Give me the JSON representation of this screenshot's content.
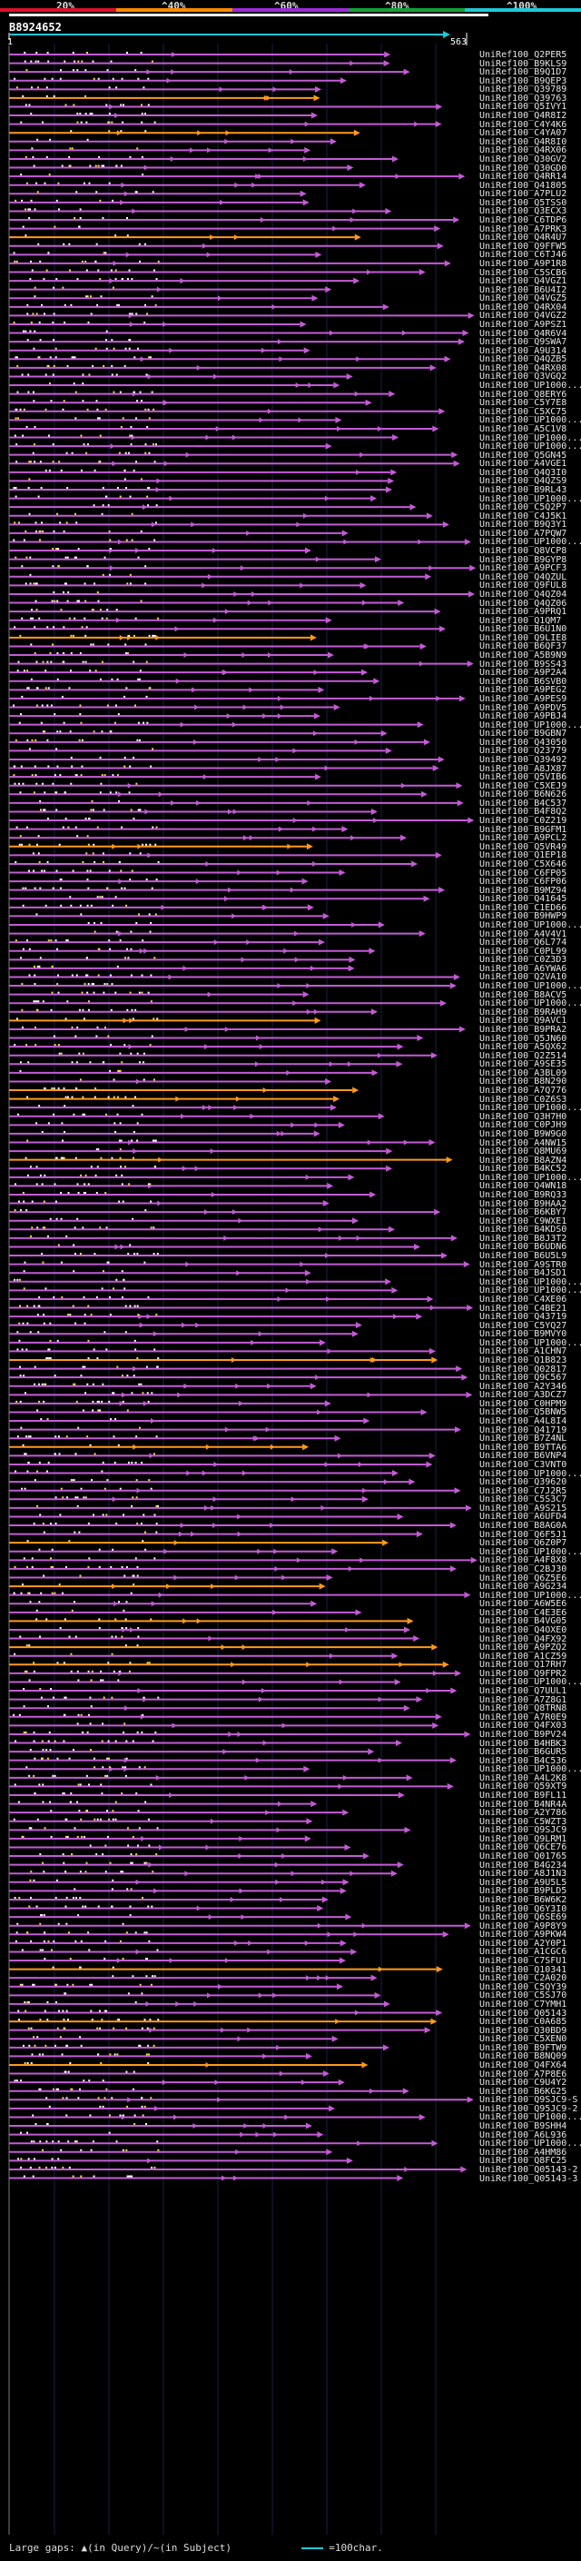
{
  "query_id": "B8924652",
  "scale": {
    "labels": [
      "20%",
      "^40%",
      "^60%",
      "^80%",
      "^100%"
    ],
    "colors": [
      "#e0102a",
      "#ff8a00",
      "#9b2bd8",
      "#11a23a",
      "#20c8d6"
    ]
  },
  "ruler": {
    "start": "1",
    "end": "563"
  },
  "hits": [
    "UniRef100_Q2PER5",
    "UniRef100_B9KLS9",
    "UniRef100_B9Q1D7",
    "UniRef100_B9QEP3",
    "UniRef100_Q39789",
    "UniRef100_Q39763",
    "UniRef100_Q5IVY1",
    "UniRef100_Q4R8I2",
    "UniRef100_C4Y4K6",
    "UniRef100_C4YA07",
    "UniRef100_Q4R8I0",
    "UniRef100_Q4RX06",
    "UniRef100_Q30GV2",
    "UniRef100_Q30GD0",
    "UniRef100_Q4RR14",
    "UniRef100_Q41805",
    "UniRef100_A7PLU2",
    "UniRef100_Q5TSS0",
    "UniRef100_Q3ECX3",
    "UniRef100_C6TDP6",
    "UniRef100_A7PRK3",
    "UniRef100_Q4R4U7",
    "UniRef100_Q9FFW5",
    "UniRef100_C6TJ46",
    "UniRef100_A9P1R8",
    "UniRef100_C5SCB6",
    "UniRef100_Q4VGZ1",
    "UniRef100_B6U4I2",
    "UniRef100_Q4VGZ5",
    "UniRef100_Q4RX04",
    "UniRef100_Q4VGZ2",
    "UniRef100_A9PSZ1",
    "UniRef100_Q4R6V4",
    "UniRef100_Q9SWA7",
    "UniRef100_A9U314",
    "UniRef100_Q4QZB5",
    "UniRef100_Q4RX08",
    "UniRef100_Q3VGQ2",
    "UniRef100_UP1000...",
    "UniRef100_Q8ERY6",
    "UniRef100_C5Y7E8",
    "UniRef100_C5XC75",
    "UniRef100_UP1000...",
    "UniRef100_A5C1V8",
    "UniRef100_UP1000...",
    "UniRef100_UP1000...",
    "UniRef100_Q5GN45",
    "UniRef100_A4VGE1",
    "UniRef100_Q4Q3I0",
    "UniRef100_Q4QZS9",
    "UniRef100_B9RL43",
    "UniRef100_UP1000...",
    "UniRef100_C5Q2P7",
    "UniRef100_C4J5K1",
    "UniRef100_B9Q3Y1",
    "UniRef100_A7PQW7",
    "UniRef100_UP1000...",
    "UniRef100_Q8VCP8",
    "UniRef100_B9GYP8",
    "UniRef100_A9PCF3",
    "UniRef100_Q4QZUL",
    "UniRef100_Q9FUL8",
    "UniRef100_Q4QZ04",
    "UniRef100_Q4QZ06",
    "UniRef100_A9PRQ1",
    "UniRef100_Q1QM7",
    "UniRef100_B6U1N0",
    "UniRef100_Q9LIE8",
    "UniRef100_B6QF37",
    "UniRef100_A5B9N9",
    "UniRef100_B9SS43",
    "UniRef100_A9P2A4",
    "UniRef100_B6SVB0",
    "UniRef100_A9PEG2",
    "UniRef100_A9PES9",
    "UniRef100_A9PDV5",
    "UniRef100_A9PBJ4",
    "UniRef100_UP1000...",
    "UniRef100_B9GBN7",
    "UniRef100_Q43050",
    "UniRef100_Q23779",
    "UniRef100_Q39492",
    "UniRef100_A8JX87",
    "UniRef100_Q5VIB6",
    "UniRef100_C5XEJ9",
    "UniRef100_B6N626",
    "UniRef100_B4C537",
    "UniRef100_B4F8Q2",
    "UniRef100_C0Z219",
    "UniRef100_B9GFM1",
    "UniRef100_A9PCL2",
    "UniRef100_Q5VR49",
    "UniRef100_Q1EP18",
    "UniRef100_C5X646",
    "UniRef100_C6FP05",
    "UniRef100_C6FP06",
    "UniRef100_B9MZ94",
    "UniRef100_Q41645",
    "UniRef100_C1ED66",
    "UniRef100_B9HWP9",
    "UniRef100_UP1000...",
    "UniRef100_A4V4V1",
    "UniRef100_Q6L774",
    "UniRef100_C0PL99",
    "UniRef100_C0Z3D3",
    "UniRef100_A6YWA6",
    "UniRef100_Q2VA10",
    "UniRef100_UP1000...",
    "UniRef100_B8ACV5",
    "UniRef100_UP1000...",
    "UniRef100_B9RAH9",
    "UniRef100_Q9AVC1",
    "UniRef100_B9PRA2",
    "UniRef100_Q5JN60",
    "UniRef100_A5QX62",
    "UniRef100_Q2Z514",
    "UniRef100_A9SE35",
    "UniRef100_A3BL09",
    "UniRef100_B8N290",
    "UniRef100_A7Q776",
    "UniRef100_C0Z6S3",
    "UniRef100_UP1000...",
    "UniRef100_Q3H7H0",
    "UniRef100_C0PJH9",
    "UniRef100_B9W9G0",
    "UniRef100_A4NW15",
    "UniRef100_Q8MU69",
    "UniRef100_B8AZN4",
    "UniRef100_B4KC52",
    "UniRef100_UP1000...",
    "UniRef100_Q4WN18",
    "UniRef100_B9RQ33",
    "UniRef100_B9HAA2",
    "UniRef100_B6KBY7",
    "UniRef100_C9WXE1",
    "UniRef100_B4KDS0",
    "UniRef100_B8J3T2",
    "UniRef100_B6UDN6",
    "UniRef100_B6U5L9",
    "UniRef100_A9STR0",
    "UniRef100_B4JSD1",
    "UniRef100_UP1000...",
    "UniRef100_UP1000...",
    "UniRef100_C4XE06",
    "UniRef100_C4BE21",
    "UniRef100_Q43719",
    "UniRef100_C5YQ27",
    "UniRef100_B9MVY0",
    "UniRef100_UP1000...",
    "UniRef100_A1CHN7",
    "UniRef100_Q1B823",
    "UniRef100_Q02817",
    "UniRef100_Q9C567",
    "UniRef100_A2Y346",
    "UniRef100_A3DCZ7",
    "UniRef100_C0HPM9",
    "UniRef100_Q5BNW5",
    "UniRef100_A4L8I4",
    "UniRef100_Q41719",
    "UniRef100_B7Z4NL",
    "UniRef100_B9TTA6",
    "UniRef100_B6VNP4",
    "UniRef100_C3VNT0",
    "UniRef100_UP1000...",
    "UniRef100_Q39620",
    "UniRef100_C7J2R5",
    "UniRef100_C5S3C7",
    "UniRef100_A9S215",
    "UniRef100_A6UFD4",
    "UniRef100_B8AG0A",
    "UniRef100_Q6F5J1",
    "UniRef100_Q6Z0P7",
    "UniRef100_UP1000...",
    "UniRef100_A4F8X8",
    "UniRef100_C2BJ30",
    "UniRef100_Q6Z5E6",
    "UniRef100_A9G234",
    "UniRef100_UP1000...",
    "UniRef100_A6W5E6",
    "UniRef100_C4E3E6",
    "UniRef100_B4VG05",
    "UniRef100_Q4OXE0",
    "UniRef100_Q4FX92",
    "UniRef100_A9PZQ2",
    "UniRef100_A1CZ59",
    "UniRef100_Q17RH7",
    "UniRef100_Q9FPR2",
    "UniRef100_UP1000...",
    "UniRef100_Q7UUL1",
    "UniRef100_A7Z8G1",
    "UniRef100_Q8TRN8",
    "UniRef100_A7R0E9",
    "UniRef100_Q4FX03",
    "UniRef100_B9PV24",
    "UniRef100_B4HBK3",
    "UniRef100_B6GUR5",
    "UniRef100_B4C536",
    "UniRef100_UP1000...",
    "UniRef100_A4L2K8",
    "UniRef100_Q59XT9",
    "UniRef100_B9FL11",
    "UniRef100_B4NR4A",
    "UniRef100_A2Y786",
    "UniRef100_C5WZT3",
    "UniRef100_Q9SJC9",
    "UniRef100_Q9LRM1",
    "UniRef100_Q6CE76",
    "UniRef100_Q01765",
    "UniRef100_B4G234",
    "UniRef100_A8J1N3",
    "UniRef100_A9U5L5",
    "UniRef100_B9PLD5",
    "UniRef100_B6W6K2",
    "UniRef100_Q6Y3I0",
    "UniRef100_Q6SE69",
    "UniRef100_A9P8Y9",
    "UniRef100_A9PKW4",
    "UniRef100_A2Y0P1",
    "UniRef100_A1CGC6",
    "UniRef100_C7SFU1",
    "UniRef100_Q10341",
    "UniRef100_C2A020",
    "UniRef100_C5QY39",
    "UniRef100_C5SJ70",
    "UniRef100_C7YMH1",
    "UniRef100_Q05143",
    "UniRef100_C0A685",
    "UniRef100_Q30BD9",
    "UniRef100_C5XEN0",
    "UniRef100_B9FTW9",
    "UniRef100_B8NQ09",
    "UniRef100_Q4FX64",
    "UniRef100_A7P8E6",
    "UniRef100_C9U4Y2",
    "UniRef100_B6KG25",
    "UniRef100_Q9SJC9-S",
    "UniRef100_Q95JC9-2",
    "UniRef100_UP1000...",
    "UniRef100_B9SHH4",
    "UniRef100_A6L936",
    "UniRef100_UP1000...",
    "UniRef100_A4HM86",
    "UniRef100_Q8FC25",
    "UniRef100_Q05143-2",
    "UniRef100_Q05143-3"
  ],
  "footer": {
    "gap_note": "Large gaps: ▲(in Query)/~(in Subject)",
    "legend_label": "=100char."
  }
}
